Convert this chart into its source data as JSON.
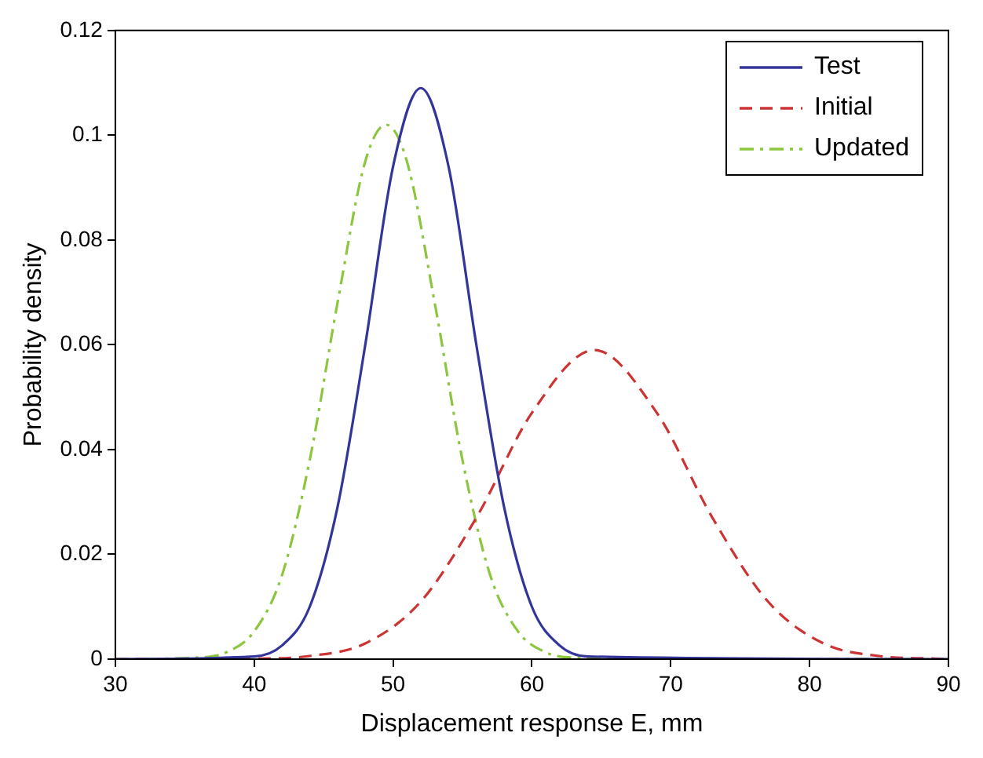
{
  "chart_data": {
    "type": "line",
    "xlabel": "Displacement response E, mm",
    "ylabel": "Probability density",
    "xlim": [
      30,
      90
    ],
    "xticks": [
      30,
      40,
      50,
      60,
      70,
      80,
      90
    ],
    "ylim": [
      0,
      0.12
    ],
    "yticks": [
      0,
      0.02,
      0.04,
      0.06,
      0.08,
      0.1,
      0.12
    ],
    "grid": false,
    "legend": "top right",
    "marker": "none",
    "series": [
      {
        "name": "Test",
        "color": "#34359a",
        "line_style": "solid",
        "x": [
          30,
          40,
          42,
          44,
          46,
          48,
          50,
          52,
          54,
          56,
          58,
          60,
          62,
          64,
          90
        ],
        "values": [
          0,
          0.0005,
          0.0026,
          0.01,
          0.029,
          0.06,
          0.094,
          0.109,
          0.094,
          0.06,
          0.029,
          0.01,
          0.0026,
          0.0005,
          0
        ]
      },
      {
        "name": "Initial",
        "color": "#cc3333",
        "line_style": "dashed",
        "x": [
          30,
          40,
          44,
          48,
          52,
          56,
          60,
          64.5,
          69,
          73,
          77,
          81,
          85,
          89,
          90
        ],
        "values": [
          0,
          0.0001,
          0.0006,
          0.003,
          0.011,
          0.027,
          0.047,
          0.059,
          0.047,
          0.027,
          0.011,
          0.003,
          0.0006,
          0.0001,
          0
        ]
      },
      {
        "name": "Updated",
        "color": "#8cc63f",
        "line_style": "dashdot",
        "x": [
          30,
          36,
          38,
          40,
          42,
          44,
          46,
          48,
          49.5,
          51,
          53,
          55,
          57,
          59,
          61,
          63,
          90
        ],
        "values": [
          0,
          0.0003,
          0.0013,
          0.0053,
          0.016,
          0.038,
          0.068,
          0.095,
          0.102,
          0.095,
          0.068,
          0.038,
          0.016,
          0.0053,
          0.0013,
          0.0003,
          0
        ]
      }
    ]
  }
}
